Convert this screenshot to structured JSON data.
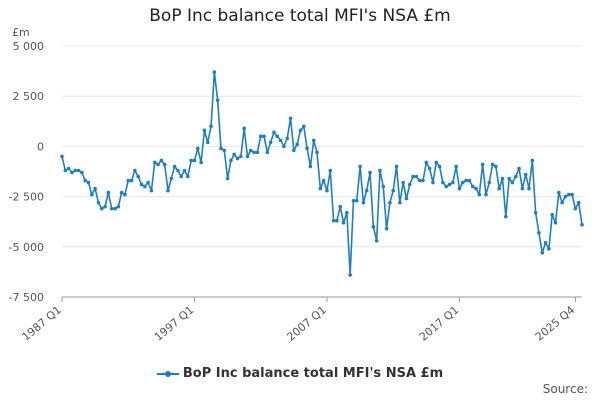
{
  "page": {
    "title": "BoP Inc balance total MFI's NSA £m",
    "unit": "£m",
    "source_label": "Source:"
  },
  "colors": {
    "series": "#1f7fbe",
    "grid": "#e6e6e6",
    "axis": "#999999",
    "text": "#555555"
  },
  "chart_data": {
    "type": "line",
    "title": "BoP Inc balance total MFI's NSA £m",
    "ylabel": "£m",
    "xlabel": "",
    "ylim": [
      -7500,
      5000
    ],
    "yticks": [
      5000,
      2500,
      0,
      -2500,
      -5000,
      -7500
    ],
    "ytick_labels": [
      "5 000",
      "2 500",
      "0",
      "-2 500",
      "-5 000",
      "-7 500"
    ],
    "xticks": [
      {
        "label": "1987 Q1",
        "index": 0
      },
      {
        "label": "1997 Q1",
        "index": 40
      },
      {
        "label": "2007 Q1",
        "index": 80
      },
      {
        "label": "2017 Q1",
        "index": 120
      },
      {
        "label": "2025 Q4",
        "index": 155
      }
    ],
    "grid": true,
    "legend": "bottom-center",
    "series": [
      {
        "name": "BoP Inc balance total MFI's NSA £m",
        "x_start": "1987 Q1",
        "x_end": "2025 Q4",
        "values": [
          -500,
          -1200,
          -1100,
          -1300,
          -1200,
          -1200,
          -1300,
          -1700,
          -1800,
          -2400,
          -2100,
          -2800,
          -3100,
          -3000,
          -2300,
          -3100,
          -3100,
          -3000,
          -2300,
          -2400,
          -1700,
          -1700,
          -1200,
          -1500,
          -1900,
          -2000,
          -1800,
          -2200,
          -800,
          -900,
          -700,
          -900,
          -2200,
          -1600,
          -1000,
          -1200,
          -1500,
          -1200,
          -1500,
          -700,
          -700,
          -100,
          -800,
          800,
          200,
          1000,
          3700,
          2300,
          -100,
          -200,
          -1600,
          -700,
          -400,
          -600,
          -500,
          900,
          -500,
          -200,
          -300,
          -300,
          500,
          500,
          -300,
          200,
          700,
          500,
          300,
          0,
          400,
          1400,
          -200,
          100,
          800,
          1000,
          -100,
          -1000,
          300,
          -300,
          -2100,
          -1700,
          -2200,
          -1200,
          -3700,
          -3700,
          -3000,
          -3800,
          -3300,
          -6400,
          -2700,
          -2700,
          -1000,
          -2800,
          -2200,
          -1300,
          -4000,
          -4700,
          -1200,
          -2000,
          -4100,
          -2800,
          -2200,
          -1000,
          -2800,
          -1800,
          -2600,
          -1900,
          -1500,
          -1500,
          -1700,
          -1700,
          -800,
          -1100,
          -1800,
          -800,
          -1000,
          -1800,
          -2000,
          -1900,
          -1800,
          -1000,
          -2100,
          -1800,
          -1700,
          -1700,
          -2000,
          -2100,
          -2400,
          -900,
          -2400,
          -1800,
          -900,
          -1000,
          -2100,
          -1600,
          -3500,
          -1600,
          -1800,
          -1500,
          -1100,
          -2100,
          -1400,
          -2100,
          -700,
          -3300,
          -4300,
          -5300,
          -4800,
          -5100,
          -3400,
          -3800,
          -2300,
          -2800,
          -2500,
          -2400,
          -2400,
          -3100,
          -2800,
          -3900
        ]
      }
    ]
  }
}
